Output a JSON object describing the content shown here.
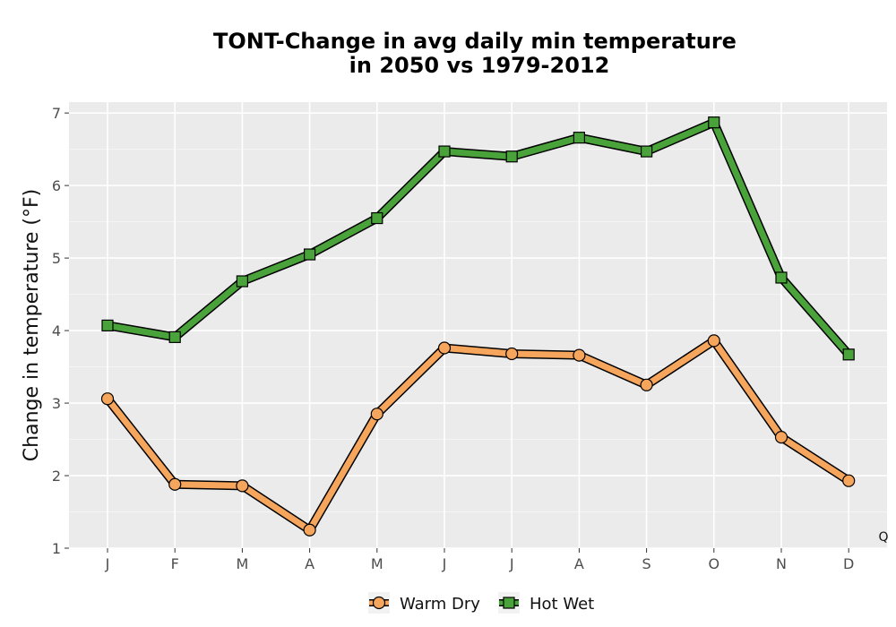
{
  "chart_data": {
    "type": "line",
    "title_line1": "TONT-Change in avg daily min temperature",
    "title_line2": "in 2050 vs 1979-2012",
    "xlabel": "",
    "ylabel": "Change in temperature (°F)",
    "categories": [
      "J",
      "F",
      "M",
      "A",
      "M",
      "J",
      "J",
      "A",
      "S",
      "O",
      "N",
      "D"
    ],
    "yticks": [
      "1",
      "2",
      "3",
      "4",
      "5",
      "6",
      "7"
    ],
    "ylim": [
      1,
      7.15
    ],
    "grid": true,
    "legend_position": "bottom",
    "annotation": "Q",
    "series": [
      {
        "name": "Warm Dry",
        "marker": "circle",
        "color": "#f5a55c",
        "values": [
          3.06,
          1.88,
          1.86,
          1.25,
          2.85,
          3.76,
          3.68,
          3.66,
          3.25,
          3.86,
          2.53,
          1.93
        ]
      },
      {
        "name": "Hot Wet",
        "marker": "square",
        "color": "#4aa33a",
        "values": [
          4.07,
          3.91,
          4.68,
          5.05,
          5.55,
          6.47,
          6.4,
          6.66,
          6.47,
          6.87,
          4.73,
          3.67
        ]
      }
    ]
  }
}
